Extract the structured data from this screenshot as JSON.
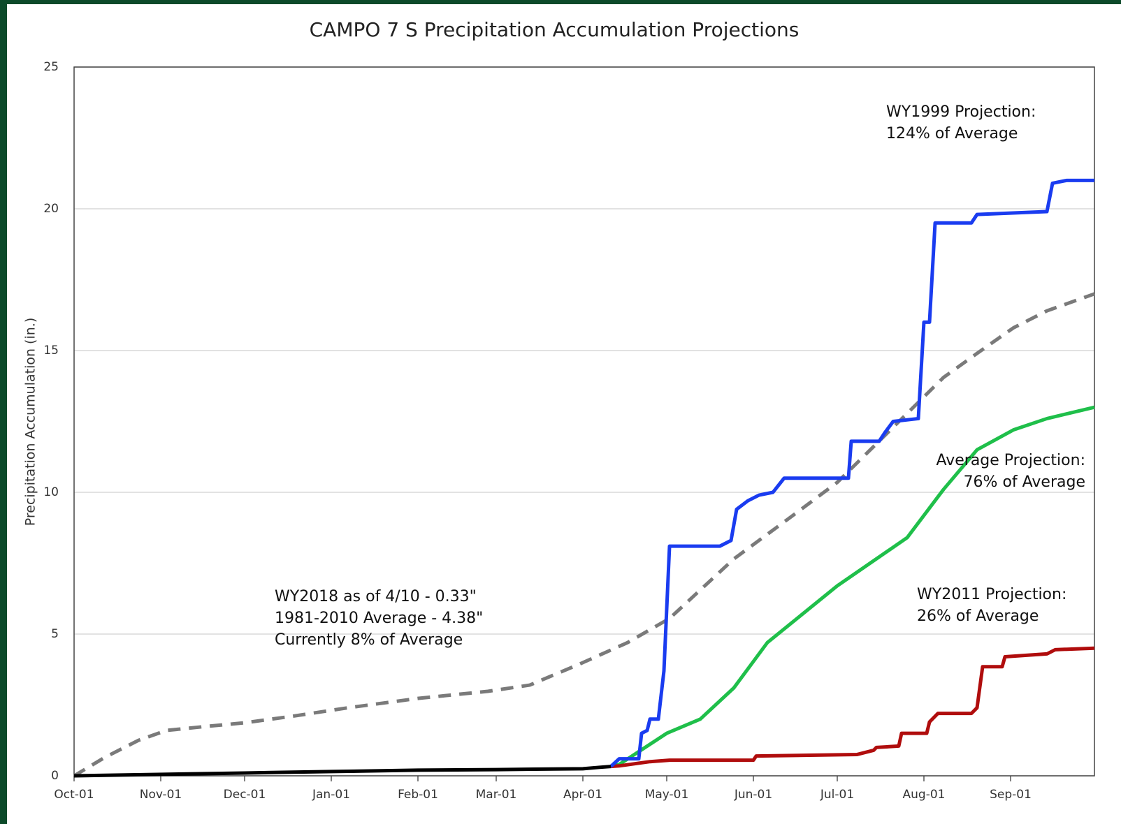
{
  "chart_data": {
    "type": "line",
    "title": "CAMPO 7 S Precipitation Accumulation Projections",
    "y_label": "Precipitation Accumulation (in.)",
    "xlim": [
      0,
      365
    ],
    "xticks": [
      {
        "value": 0,
        "label": "Oct-01"
      },
      {
        "value": 31,
        "label": "Nov-01"
      },
      {
        "value": 61,
        "label": "Dec-01"
      },
      {
        "value": 92,
        "label": "Jan-01"
      },
      {
        "value": 123,
        "label": "Feb-01"
      },
      {
        "value": 151,
        "label": "Mar-01"
      },
      {
        "value": 182,
        "label": "Apr-01"
      },
      {
        "value": 212,
        "label": "May-01"
      },
      {
        "value": 243,
        "label": "Jun-01"
      },
      {
        "value": 273,
        "label": "Jul-01"
      },
      {
        "value": 304,
        "label": "Aug-01"
      },
      {
        "value": 335,
        "label": "Sep-01"
      }
    ],
    "ylim": [
      0,
      25
    ],
    "yticks": [
      0,
      5,
      10,
      15,
      20,
      25
    ],
    "grid": true,
    "series": [
      {
        "color": "#7a7a7a",
        "dashed": true,
        "x": [
          0,
          11,
          23,
          33,
          48,
          61,
          78,
          98,
          123,
          148,
          163,
          181,
          198,
          213,
          236,
          256,
          273,
          291,
          311,
          323,
          336,
          348,
          365
        ],
        "values": [
          0,
          0.65,
          1.25,
          1.6,
          1.75,
          1.87,
          2.1,
          2.4,
          2.73,
          2.98,
          3.2,
          3.95,
          4.7,
          5.55,
          7.65,
          9.1,
          10.35,
          12.1,
          14.05,
          14.9,
          15.8,
          16.4,
          17.0
        ]
      },
      {
        "color": "#1fbf4a",
        "x": [
          192,
          195,
          212,
          224,
          236,
          248,
          273,
          298,
          311,
          323,
          336,
          348,
          365
        ],
        "values": [
          0.33,
          0.4,
          1.5,
          2.0,
          3.1,
          4.7,
          6.7,
          8.4,
          10.1,
          11.5,
          12.2,
          12.6,
          13.0
        ]
      },
      {
        "color": "#b00d0d",
        "x": [
          192,
          195,
          206,
          213,
          243,
          244,
          280,
          286,
          287,
          295,
          296,
          305,
          306,
          309,
          321,
          323,
          325,
          332,
          333,
          348,
          351,
          365
        ],
        "values": [
          0.33,
          0.35,
          0.5,
          0.55,
          0.55,
          0.7,
          0.75,
          0.9,
          1.0,
          1.05,
          1.5,
          1.5,
          1.9,
          2.2,
          2.2,
          2.4,
          3.85,
          3.85,
          4.2,
          4.3,
          4.45,
          4.5
        ]
      },
      {
        "color": "#1a3cf0",
        "x": [
          192,
          195,
          202,
          203,
          205,
          206,
          209,
          211,
          213,
          231,
          235,
          237,
          241,
          245,
          250,
          254,
          277,
          278,
          288,
          290,
          293,
          302,
          304,
          306,
          308,
          321,
          323,
          348,
          350,
          355,
          365
        ],
        "values": [
          0.33,
          0.6,
          0.6,
          1.5,
          1.6,
          2.0,
          2.0,
          3.7,
          8.1,
          8.1,
          8.3,
          9.4,
          9.7,
          9.9,
          10.0,
          10.5,
          10.5,
          11.8,
          11.8,
          12.1,
          12.5,
          12.6,
          16.0,
          16.0,
          19.5,
          19.5,
          19.8,
          19.9,
          20.9,
          21.0,
          21.0
        ]
      },
      {
        "color": "#000000",
        "x": [
          0,
          30,
          61,
          92,
          123,
          151,
          182,
          188,
          192
        ],
        "values": [
          0,
          0.05,
          0.1,
          0.15,
          0.2,
          0.22,
          0.25,
          0.3,
          0.33
        ]
      }
    ],
    "annotations": [
      [
        "WY1999 Projection:",
        "124% of Average"
      ],
      [
        "Average Projection:",
        "76% of Average"
      ],
      [
        "WY2011 Projection:",
        "26% of Average"
      ],
      [
        "WY2018 as of 4/10 - 0.33\"",
        "1981-2010 Average - 4.38\"",
        "Currently 8% of Average"
      ]
    ]
  }
}
